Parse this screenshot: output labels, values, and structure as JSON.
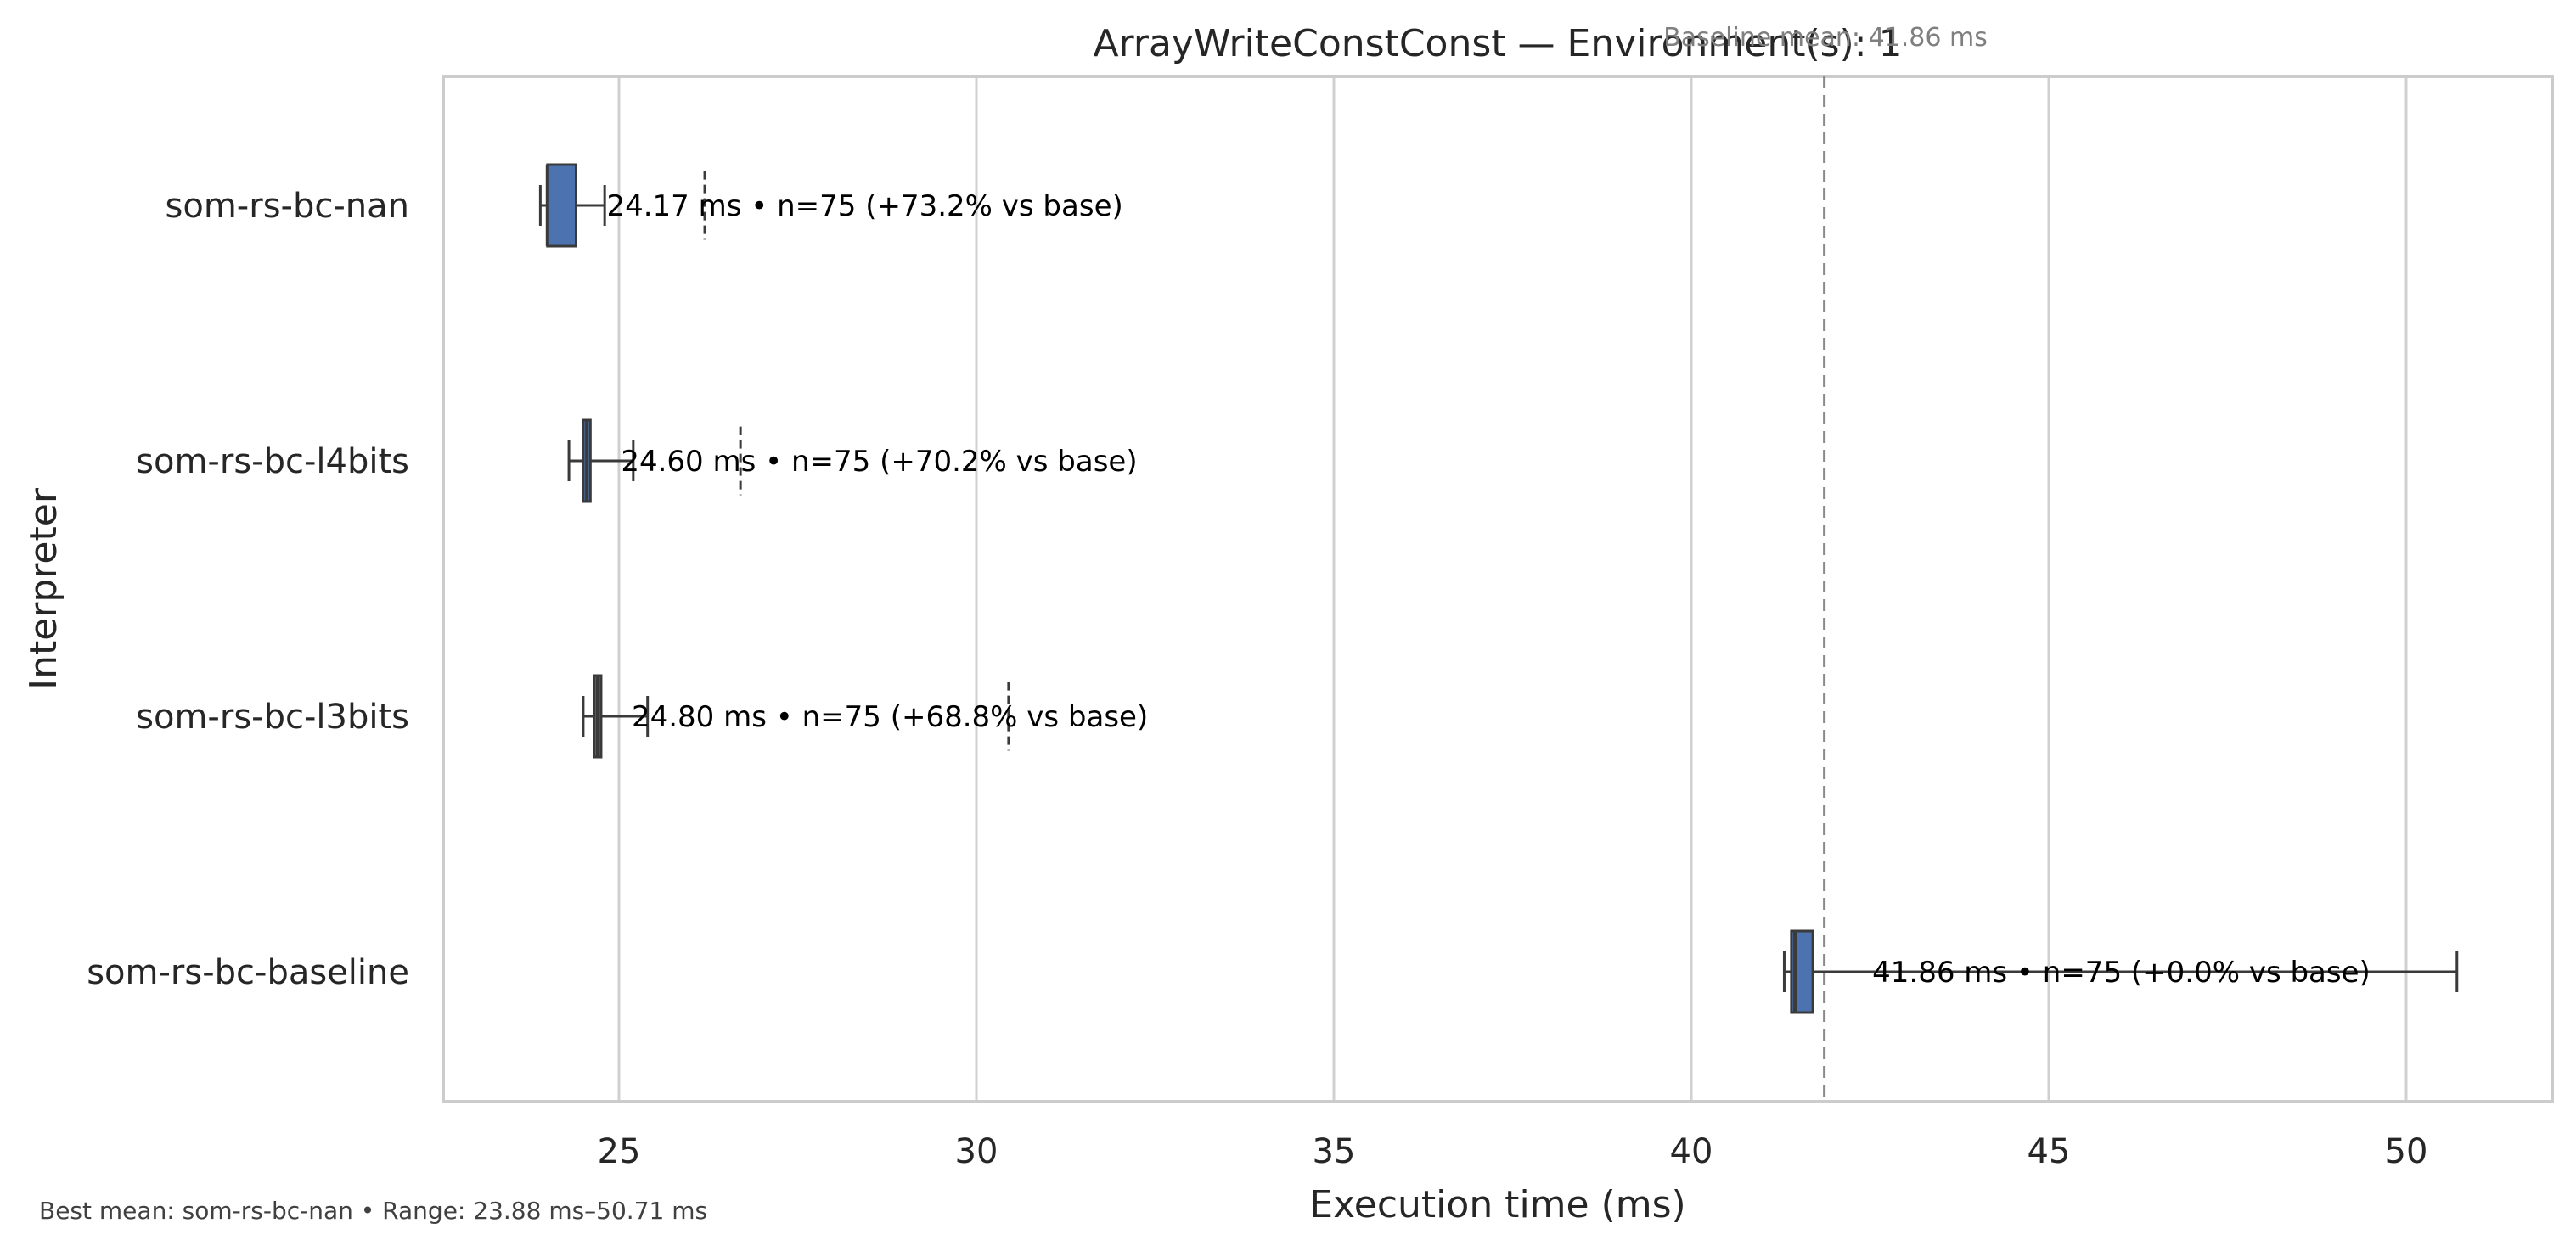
{
  "chart_data": {
    "type": "box",
    "orientation": "horizontal",
    "title": "ArrayWriteConstConst — Environment(s): 1",
    "xlabel": "Execution time (ms)",
    "ylabel": "Interpreter",
    "xlim": [
      22.5,
      52
    ],
    "xticks": [
      25,
      30,
      35,
      40,
      45,
      50
    ],
    "grid": "vertical",
    "categories": [
      "som-rs-bc-nan",
      "som-rs-bc-l4bits",
      "som-rs-bc-l3bits",
      "som-rs-bc-baseline"
    ],
    "series": [
      {
        "boxes": [
          {
            "whisker_low": 23.9,
            "q1": 24.0,
            "median": 24.0,
            "q3": 24.4,
            "whisker_high": 24.8,
            "mean": 24.17,
            "outliers": [
              26.2
            ]
          },
          {
            "whisker_low": 24.3,
            "q1": 24.5,
            "median": 24.55,
            "q3": 24.6,
            "whisker_high": 25.2,
            "mean": 24.6,
            "outliers": [
              26.7
            ]
          },
          {
            "whisker_low": 24.5,
            "q1": 24.65,
            "median": 24.7,
            "q3": 24.75,
            "whisker_high": 25.4,
            "mean": 24.8,
            "outliers": [
              30.45
            ]
          },
          {
            "whisker_low": 41.3,
            "q1": 41.4,
            "median": 41.45,
            "q3": 41.7,
            "whisker_high": 50.71,
            "mean": 41.86,
            "outliers": []
          }
        ]
      }
    ],
    "annotations": [
      "24.17 ms • n=75 (+73.2% vs base)",
      "24.60 ms • n=75 (+70.2% vs base)",
      "24.80 ms • n=75 (+68.8% vs base)",
      "41.86 ms • n=75 (+0.0% vs base)"
    ],
    "reference_line": {
      "value": 41.86,
      "label": "Baseline mean: 41.86 ms",
      "style": "dashed"
    },
    "footer": "Best mean: som-rs-bc-nan • Range: 23.88 ms–50.71 ms",
    "colors": {
      "box": "#4c72b0",
      "edge": "#3a3a3a",
      "grid": "#d0d0d0",
      "frame": "#cccccc",
      "refline": "#8a8a8a"
    }
  }
}
